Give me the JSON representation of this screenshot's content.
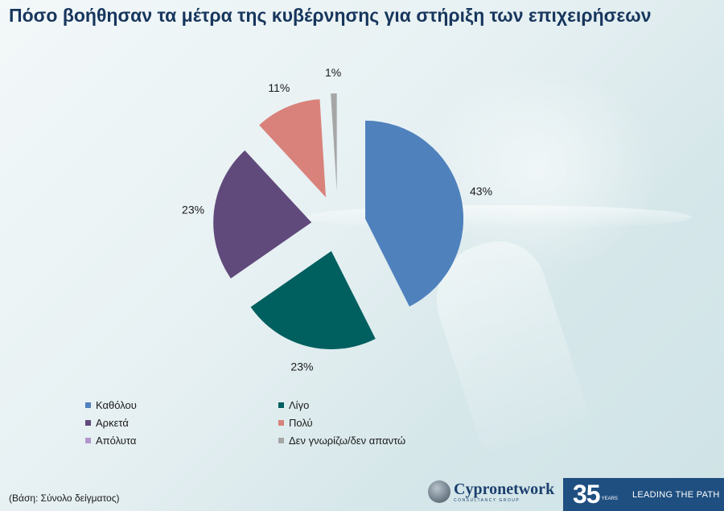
{
  "title": "Πόσο βοήθησαν τα μέτρα της κυβέρνησης για στήριξη των επιχειρήσεων",
  "chart_data": {
    "type": "pie",
    "title": "Πόσο βοήθησαν τα μέτρα της κυβέρνησης για στήριξη των επιχειρήσεων",
    "categories": [
      "Καθόλου",
      "Λίγο",
      "Αρκετά",
      "Πολύ",
      "Απόλυτα",
      "Δεν γνωρίζω/δεν απαντώ"
    ],
    "values": [
      43,
      23,
      23,
      11,
      0,
      1
    ],
    "labels": [
      "43%",
      "23%",
      "23%",
      "11%",
      "",
      "1%"
    ],
    "colors": [
      "#4f81bd",
      "#005f5f",
      "#604a7b",
      "#d9827b",
      "#b196c9",
      "#a6a6a6"
    ],
    "exploded": true,
    "legend_position": "bottom"
  },
  "legend": [
    {
      "label": "Καθόλου",
      "color": "#4f81bd"
    },
    {
      "label": "Λίγο",
      "color": "#005f5f"
    },
    {
      "label": "Αρκετά",
      "color": "#604a7b"
    },
    {
      "label": "Πολύ",
      "color": "#d9827b"
    },
    {
      "label": "Απόλυτα",
      "color": "#b196c9"
    },
    {
      "label": "Δεν γνωρίζω/δεν απαντώ",
      "color": "#a6a6a6"
    }
  ],
  "base_note": "(Βάση: Σύνολο δείγματος)",
  "logo": {
    "name": "Cypronetwork",
    "sub": "CONSULTANCY GROUP"
  },
  "banner": {
    "number": "35",
    "years": "YEARS",
    "tagline": "LEADING THE PATH"
  }
}
